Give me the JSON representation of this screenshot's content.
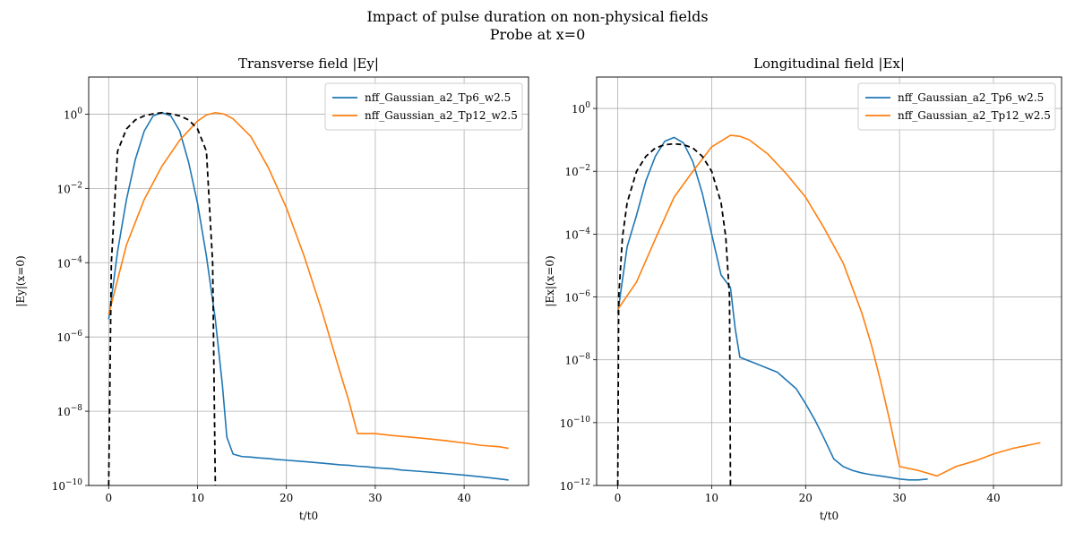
{
  "suptitle": [
    "Impact of pulse duration on non-physical fields",
    "Probe at x=0"
  ],
  "colors": {
    "series0": "#1f77b4",
    "series1": "#ff7f0e",
    "envelope": "#000000",
    "grid": "#b0b0b0"
  },
  "chart_data": [
    {
      "type": "line",
      "title": "Transverse field |Ey|",
      "xlabel": "t/t0",
      "ylabel": "|Ey|(x=0)",
      "yscale": "log",
      "xlim": [
        -2.25,
        47.25
      ],
      "ylim": [
        1e-10,
        10
      ],
      "xticks": [
        0,
        10,
        20,
        30,
        40
      ],
      "yticks": [
        1e-10,
        1e-08,
        1e-06,
        0.0001,
        0.01,
        1
      ],
      "yticklabels": [
        [
          "10",
          "−10"
        ],
        [
          "10",
          "−8"
        ],
        [
          "10",
          "−6"
        ],
        [
          "10",
          "−4"
        ],
        [
          "10",
          "−2"
        ],
        [
          "10",
          "0"
        ]
      ],
      "grid": true,
      "legend_loc": "top-right",
      "series": [
        {
          "name": "nff_Gaussian_a2_Tp6_w2.5",
          "color": "#1f77b4",
          "x": [
            0.0,
            1,
            2,
            3,
            4,
            5,
            6,
            7,
            8,
            9,
            10,
            11,
            12,
            12.8,
            13.3,
            14,
            15,
            16,
            17,
            18,
            19,
            20,
            21,
            22,
            23,
            24,
            25,
            26,
            27,
            28,
            29,
            30,
            31,
            32,
            33,
            34,
            35,
            36,
            37,
            38,
            39,
            40,
            41,
            42,
            43,
            44,
            45
          ],
          "y": [
            3e-06,
            0.0002,
            0.005,
            0.06,
            0.35,
            0.9,
            1.1,
            0.9,
            0.35,
            0.05,
            0.004,
            0.00015,
            3e-06,
            5e-08,
            2e-09,
            7e-10,
            6e-10,
            5.8e-10,
            5.5e-10,
            5.3e-10,
            5e-10,
            4.8e-10,
            4.6e-10,
            4.4e-10,
            4.2e-10,
            4e-10,
            3.8e-10,
            3.6e-10,
            3.5e-10,
            3.3e-10,
            3.2e-10,
            3e-10,
            2.9e-10,
            2.8e-10,
            2.6e-10,
            2.5e-10,
            2.4e-10,
            2.3e-10,
            2.2e-10,
            2.1e-10,
            2e-10,
            1.9e-10,
            1.8e-10,
            1.7e-10,
            1.6e-10,
            1.5e-10,
            1.4e-10
          ]
        },
        {
          "name": "nff_Gaussian_a2_Tp12_w2.5",
          "color": "#ff7f0e",
          "x": [
            0.0,
            2,
            4,
            6,
            8,
            10,
            11,
            12,
            13,
            14,
            16,
            18,
            20,
            22,
            24,
            26,
            27,
            28,
            30,
            32,
            34,
            36,
            38,
            40,
            42,
            44,
            45
          ],
          "y": [
            4e-06,
            0.0003,
            0.005,
            0.04,
            0.2,
            0.65,
            0.95,
            1.1,
            1.0,
            0.75,
            0.25,
            0.035,
            0.003,
            0.00015,
            5e-06,
            1.2e-07,
            2e-08,
            2.5e-09,
            2.5e-09,
            2.2e-09,
            2e-09,
            1.8e-09,
            1.6e-09,
            1.4e-09,
            1.2e-09,
            1.1e-09,
            1e-09
          ]
        },
        {
          "name": "",
          "color": "#000000",
          "dashed": true,
          "x": [
            0.0,
            0.3,
            1,
            2,
            3,
            4,
            5,
            6,
            7,
            8,
            9,
            10,
            11,
            11.7,
            12.0
          ],
          "y": [
            1e-10,
            0.0001,
            0.1,
            0.4,
            0.7,
            0.9,
            1.02,
            1.1,
            1.02,
            0.9,
            0.7,
            0.4,
            0.1,
            0.0001,
            1e-10
          ]
        }
      ]
    },
    {
      "type": "line",
      "title": "Longitudinal field |Ex|",
      "xlabel": "t/t0",
      "ylabel": "|Ex|(x=0)",
      "yscale": "log",
      "xlim": [
        -2.25,
        47.25
      ],
      "ylim": [
        1e-12,
        10
      ],
      "xticks": [
        0,
        10,
        20,
        30,
        40
      ],
      "yticks": [
        1e-12,
        1e-10,
        1e-08,
        1e-06,
        0.0001,
        0.01,
        1
      ],
      "yticklabels": [
        [
          "10",
          "−12"
        ],
        [
          "10",
          "−10"
        ],
        [
          "10",
          "−8"
        ],
        [
          "10",
          "−6"
        ],
        [
          "10",
          "−4"
        ],
        [
          "10",
          "−2"
        ],
        [
          "10",
          "0"
        ]
      ],
      "grid": true,
      "legend_loc": "top-right",
      "series": [
        {
          "name": "nff_Gaussian_a2_Tp6_w2.5",
          "color": "#1f77b4",
          "x": [
            0.0,
            1,
            2,
            3,
            4,
            5,
            6,
            7,
            8,
            9,
            10,
            11,
            12,
            12.5,
            13,
            15,
            17,
            19,
            20,
            21,
            22,
            23,
            24,
            25,
            26,
            27,
            28,
            29,
            30,
            31,
            32,
            33
          ],
          "y": [
            3e-07,
            4e-05,
            0.0004,
            0.005,
            0.03,
            0.09,
            0.12,
            0.08,
            0.02,
            0.002,
            0.0001,
            5e-06,
            2e-06,
            1e-07,
            1.2e-08,
            7e-09,
            4e-09,
            1.2e-09,
            4e-10,
            1.2e-10,
            3e-11,
            7e-12,
            4e-12,
            3e-12,
            2.5e-12,
            2.2e-12,
            2e-12,
            1.8e-12,
            1.6e-12,
            1.5e-12,
            1.5e-12,
            1.6e-12
          ]
        },
        {
          "name": "nff_Gaussian_a2_Tp12_w2.5",
          "color": "#ff7f0e",
          "x": [
            0.0,
            2,
            4,
            6,
            8,
            10,
            12,
            13,
            14,
            16,
            18,
            20,
            22,
            24,
            26,
            27,
            28,
            29,
            30,
            32,
            34,
            36,
            38,
            40,
            42,
            44,
            45
          ],
          "y": [
            4e-07,
            3e-06,
            7e-05,
            0.0015,
            0.01,
            0.06,
            0.14,
            0.13,
            0.1,
            0.035,
            0.008,
            0.0015,
            0.00015,
            1.2e-05,
            3e-07,
            3e-08,
            2e-09,
            1e-10,
            4e-12,
            3e-12,
            2e-12,
            4e-12,
            6e-12,
            1e-11,
            1.5e-11,
            2e-11,
            2.3e-11
          ]
        },
        {
          "name": "",
          "color": "#000000",
          "dashed": true,
          "x": [
            0.0,
            0.1,
            0.5,
            1,
            2,
            3,
            4,
            5,
            6,
            7,
            8,
            9,
            10,
            11,
            11.5,
            11.9,
            12.0
          ],
          "y": [
            1e-12,
            1e-06,
            8e-05,
            0.001,
            0.01,
            0.03,
            0.055,
            0.07,
            0.075,
            0.07,
            0.055,
            0.03,
            0.01,
            0.001,
            8e-05,
            1e-06,
            1e-12
          ]
        }
      ]
    }
  ]
}
